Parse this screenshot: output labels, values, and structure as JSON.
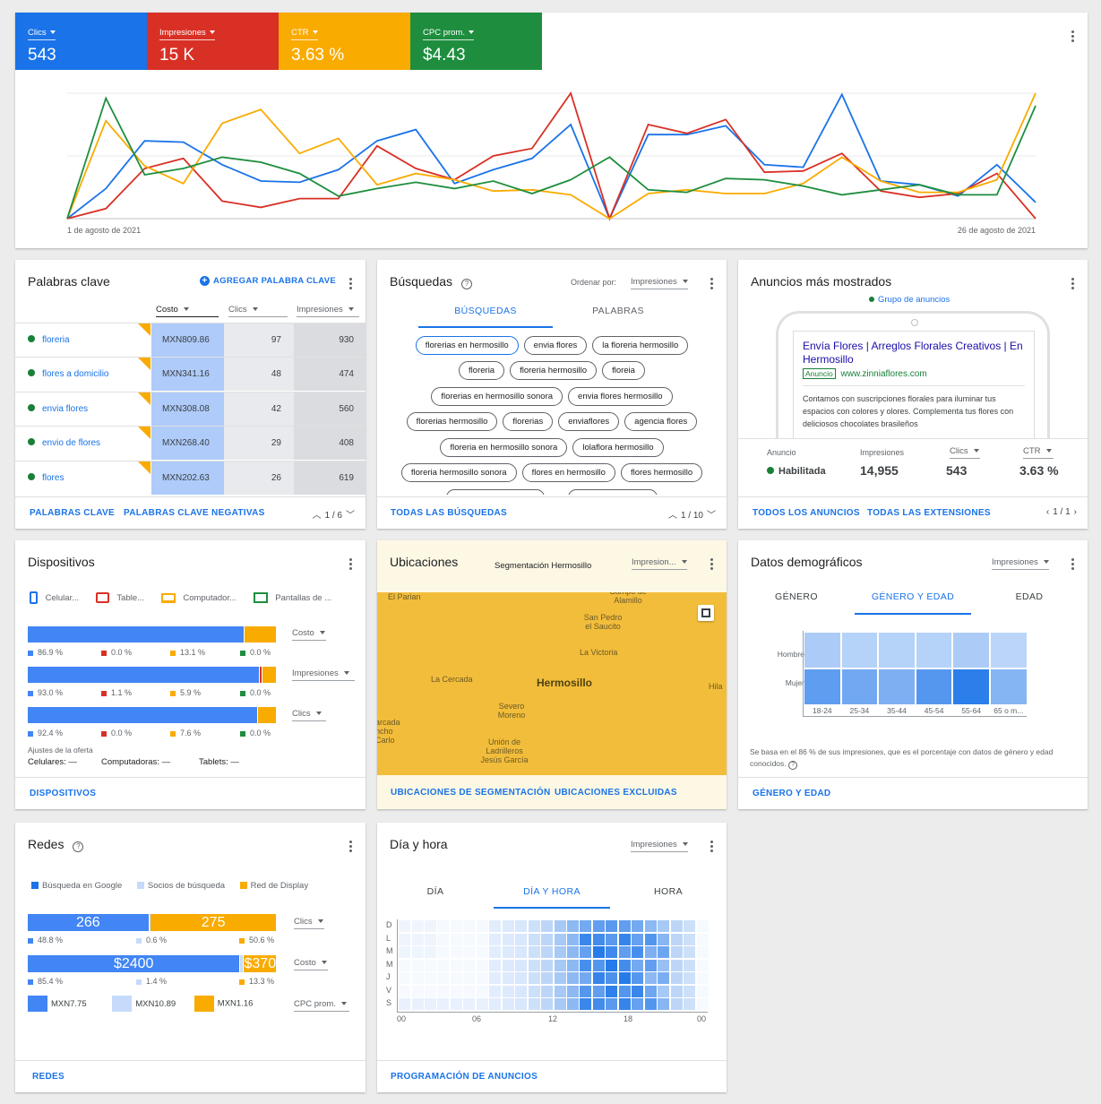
{
  "colors": {
    "blue": "#1a73e8",
    "red": "#d93025",
    "yellow": "#f9ab00",
    "green": "#1e8e3e",
    "dot_green": "#188038"
  },
  "overview": {
    "metrics": [
      {
        "label": "Clics",
        "value": "543",
        "color": "#1a73e8"
      },
      {
        "label": "Impresiones",
        "value": "15 K",
        "color": "#d93025"
      },
      {
        "label": "CTR",
        "value": "3.63 %",
        "color": "#f9ab00"
      },
      {
        "label": "CPC prom.",
        "value": "$4.43",
        "color": "#1e8e3e"
      }
    ],
    "start_date": "1 de agosto de 2021",
    "end_date": "26 de agosto de 2021"
  },
  "chart_data": {
    "type": "line",
    "x": [
      1,
      2,
      3,
      4,
      5,
      6,
      7,
      8,
      9,
      10,
      11,
      12,
      13,
      14,
      15,
      16,
      17,
      18,
      19,
      20,
      21,
      22,
      23,
      24,
      25,
      26
    ],
    "series": [
      {
        "name": "Clics",
        "color": "#1a73e8",
        "values": [
          0,
          0.24,
          0.62,
          0.61,
          0.43,
          0.3,
          0.29,
          0.39,
          0.62,
          0.71,
          0.28,
          0.39,
          0.48,
          0.75,
          0,
          0.67,
          0.67,
          0.74,
          0.43,
          0.41,
          0.99,
          0.3,
          0.27,
          0.18,
          0.43,
          0.13
        ]
      },
      {
        "name": "Impresiones",
        "color": "#d93025",
        "values": [
          0,
          0.08,
          0.4,
          0.48,
          0.14,
          0.09,
          0.16,
          0.16,
          0.58,
          0.4,
          0.31,
          0.5,
          0.56,
          1.0,
          0,
          0.75,
          0.68,
          0.79,
          0.37,
          0.38,
          0.52,
          0.22,
          0.17,
          0.2,
          0.36,
          0
        ]
      },
      {
        "name": "CTR",
        "color": "#f9ab00",
        "values": [
          0,
          0.78,
          0.42,
          0.28,
          0.76,
          0.87,
          0.52,
          0.64,
          0.27,
          0.36,
          0.31,
          0.22,
          0.23,
          0.19,
          0,
          0.2,
          0.23,
          0.2,
          0.2,
          0.28,
          0.49,
          0.3,
          0.21,
          0.21,
          0.31,
          1.0
        ]
      },
      {
        "name": "CPC prom.",
        "color": "#1e8e3e",
        "values": [
          0,
          0.96,
          0.35,
          0.4,
          0.49,
          0.45,
          0.36,
          0.18,
          0.24,
          0.29,
          0.24,
          0.3,
          0.2,
          0.31,
          0.49,
          0.23,
          0.21,
          0.32,
          0.31,
          0.26,
          0.19,
          0.23,
          0.27,
          0.19,
          0.19,
          0.9
        ]
      }
    ]
  },
  "keywords": {
    "title": "Palabras clave",
    "add_label": "AGREGAR PALABRA CLAVE",
    "columns": [
      "Costo",
      "Clics",
      "Impresiones"
    ],
    "rows": [
      {
        "name": "floreria",
        "cost": "MXN809.86",
        "clicks": "97",
        "impressions": "930"
      },
      {
        "name": "flores a domicilio",
        "cost": "MXN341.16",
        "clicks": "48",
        "impressions": "474"
      },
      {
        "name": "envia flores",
        "cost": "MXN308.08",
        "clicks": "42",
        "impressions": "560"
      },
      {
        "name": "envio de flores",
        "cost": "MXN268.40",
        "clicks": "29",
        "impressions": "408"
      },
      {
        "name": "flores",
        "cost": "MXN202.63",
        "clicks": "26",
        "impressions": "619"
      }
    ],
    "footer_links": [
      "PALABRAS CLAVE",
      "PALABRAS CLAVE NEGATIVAS"
    ],
    "pager": "1 / 6"
  },
  "searches": {
    "title": "Búsquedas",
    "sort_label": "Ordenar por:",
    "sort_value": "Impresiones",
    "tabs": [
      "BÚSQUEDAS",
      "PALABRAS"
    ],
    "chips": [
      "florerias en hermosillo",
      "envia flores",
      "la floreria hermosillo",
      "floreria",
      "floreria hermosillo",
      "floreia",
      "florerias en hermosillo sonora",
      "envia flores hermosillo",
      "florerias hermosillo",
      "florerias",
      "enviaflores",
      "agencia flores",
      "floreria en hermosillo sonora",
      "lolaflora hermosillo",
      "floreria hermosillo sonora",
      "flores en hermosillo",
      "flores hermosillo"
    ],
    "footer_link": "TODAS LAS BÚSQUEDAS",
    "pager": "1 / 10"
  },
  "ads": {
    "title": "Anuncios más mostrados",
    "group_label": "Grupo de anuncios",
    "headline": "Envía Flores | Arreglos Florales Creativos | En Hermosillo",
    "badge": "Anuncio",
    "url": "www.zinniaflores.com",
    "description": "Contamos con suscripciones florales para iluminar tus espacios con colores y olores. Complementa tus flores con deliciosos chocolates brasileños",
    "stats": [
      {
        "label": "Anuncio",
        "value": "Habilitada"
      },
      {
        "label": "Impresiones",
        "value": "14,955"
      },
      {
        "label": "Clics",
        "value": "543"
      },
      {
        "label": "CTR",
        "value": "3.63 %"
      }
    ],
    "footer_links": [
      "TODOS LOS ANUNCIOS",
      "TODAS LAS EXTENSIONES"
    ],
    "pager": "1 / 1"
  },
  "devices": {
    "title": "Dispositivos",
    "legend": [
      "Celular...",
      "Table...",
      "Computador...",
      "Pantallas de ..."
    ],
    "rows": [
      {
        "metric": "Costo",
        "pcts": [
          "86.9 %",
          "0.0 %",
          "13.1 %",
          "0.0 %"
        ],
        "shares": [
          0.869,
          0.0,
          0.131,
          0.0
        ]
      },
      {
        "metric": "Impresiones",
        "pcts": [
          "93.0 %",
          "1.1 %",
          "5.9 %",
          "0.0 %"
        ],
        "shares": [
          0.93,
          0.011,
          0.059,
          0.0
        ]
      },
      {
        "metric": "Clics",
        "pcts": [
          "92.4 %",
          "0.0 %",
          "7.6 %",
          "0.0 %"
        ],
        "shares": [
          0.924,
          0.0,
          0.076,
          0.0
        ]
      }
    ],
    "bid_title": "Ajustes de la oferta",
    "bids": [
      "Celulares: —",
      "Computadoras: —",
      "Tablets: —"
    ],
    "footer_link": "DISPOSITIVOS"
  },
  "locations": {
    "title": "Ubicaciones",
    "subtitle": "Segmentación Hermosillo",
    "dropdown": "Impresion...",
    "map_labels": [
      "El Parian",
      "Campo de Alamillo",
      "San Pedro el Saucito",
      "La Victoria",
      "La Cercada",
      "Hermosillo",
      "Hila",
      "Severo Moreno",
      "arcada ncho Carlo",
      "Unión de Ladrilleros Jesús García"
    ],
    "footer_links": [
      "UBICACIONES DE SEGMENTACIÓN",
      "UBICACIONES EXCLUIDAS"
    ]
  },
  "demographics": {
    "title": "Datos demográficos",
    "dropdown": "Impresiones",
    "tabs": [
      "GÉNERO",
      "GÉNERO Y EDAD",
      "EDAD"
    ],
    "rows": [
      "Hombre",
      "Mujer"
    ],
    "ages": [
      "18-24",
      "25-34",
      "35-44",
      "45-54",
      "55-64",
      "65 o m..."
    ],
    "intensity": [
      [
        0.25,
        0.2,
        0.2,
        0.2,
        0.25,
        0.18
      ],
      [
        0.65,
        0.55,
        0.5,
        0.7,
        0.9,
        0.45
      ]
    ],
    "note": "Se basa en el 86 % de sus impresiones, que es el porcentaje con datos de género y edad conocidos.",
    "footer_link": "GÉNERO Y EDAD"
  },
  "networks": {
    "title": "Redes",
    "legend": [
      "Búsqueda en Google",
      "Socios de búsqueda",
      "Red de Display"
    ],
    "clicks": {
      "metric": "Clics",
      "google": "266",
      "display": "275",
      "pcts": [
        "48.8 %",
        "0.6 %",
        "50.6 %"
      ],
      "shares": [
        0.488,
        0.006,
        0.506
      ]
    },
    "cost": {
      "metric": "Costo",
      "google": "$2400",
      "display": "$370",
      "pcts": [
        "85.4 %",
        "1.4 %",
        "13.3 %"
      ],
      "shares": [
        0.854,
        0.014,
        0.133
      ]
    },
    "cpc": {
      "metric": "CPC prom.",
      "values": [
        "MXN7.75",
        "MXN10.89",
        "MXN1.16"
      ]
    },
    "footer_link": "REDES"
  },
  "dayhour": {
    "title": "Día y hora",
    "dropdown": "Impresiones",
    "tabs": [
      "DÍA",
      "DÍA Y HORA",
      "HORA"
    ],
    "days": [
      "D",
      "L",
      "M",
      "M",
      "J",
      "V",
      "S"
    ],
    "hours": [
      "00",
      "06",
      "12",
      "18",
      "00"
    ],
    "footer_link": "PROGRAMACIÓN DE ANUNCIOS"
  }
}
